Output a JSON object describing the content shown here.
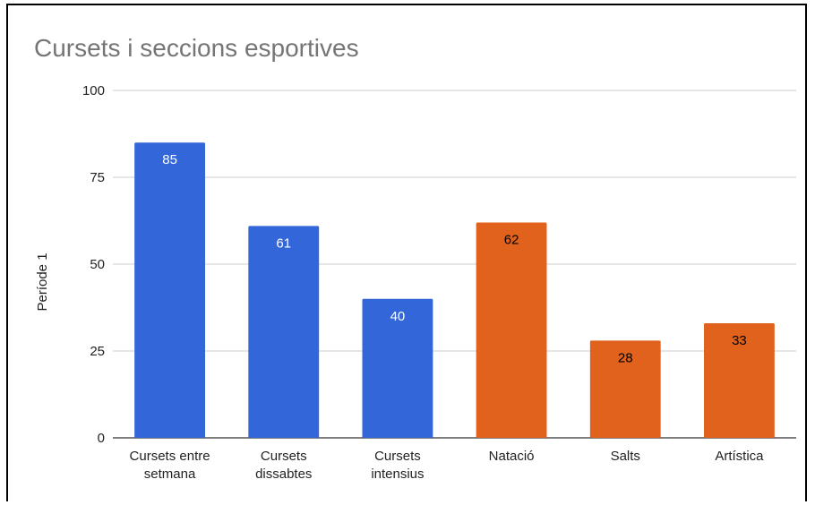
{
  "chart_data": {
    "type": "bar",
    "title": "Cursets i seccions esportives",
    "ylabel": "Període 1",
    "xlabel": "",
    "ylim": [
      0,
      100
    ],
    "yticks": [
      "0",
      "25",
      "50",
      "75",
      "100"
    ],
    "grid": true,
    "categories": [
      [
        "Cursets entre",
        "setmana"
      ],
      [
        "Cursets",
        "dissabtes"
      ],
      [
        "Cursets",
        "intensius"
      ],
      [
        "Natació"
      ],
      [
        "Salts"
      ],
      [
        "Artística"
      ]
    ],
    "values": [
      85,
      61,
      40,
      62,
      28,
      33
    ],
    "labels": [
      "85",
      "61",
      "40",
      "62",
      "28",
      "33"
    ],
    "colors": [
      "#3366d9",
      "#3366d9",
      "#3366d9",
      "#e0621c",
      "#e0621c",
      "#e0621c"
    ],
    "label_colors": [
      "#ffffff",
      "#ffffff",
      "#ffffff",
      "#000000",
      "#000000",
      "#000000"
    ]
  }
}
